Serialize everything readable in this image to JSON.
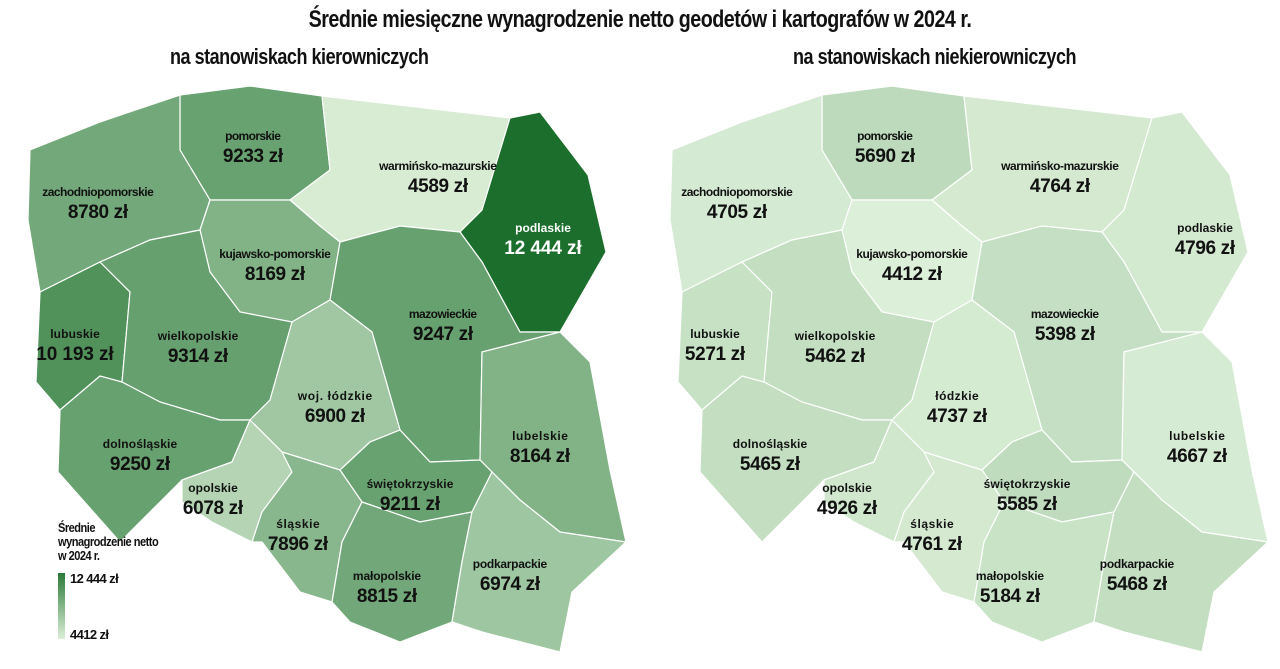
{
  "title": "Średnie miesięczne wynagrodzenie netto geodetów i kartografów w 2024 r.",
  "maps": {
    "left": {
      "subtitle": "na stanowiskach kierowniczych"
    },
    "right": {
      "subtitle": "na stanowiskach niekierowniczych"
    }
  },
  "legend": {
    "title": "Średnie wynagrodzenie netto w 2024 r.",
    "max_label": "12 444 zł",
    "min_label": "4412 zł",
    "max": 12444,
    "min": 4412,
    "color_low": "#dcefd8",
    "color_high": "#1b6e2b"
  },
  "regions": [
    {
      "id": "pomorskie",
      "left_label": "pomorskie",
      "left_value": 9233,
      "left_text": "9233 zł",
      "right_label": "pomorskie",
      "right_value": 5690,
      "right_text": "5690 zł"
    },
    {
      "id": "zachodniopomorskie",
      "left_label": "zachodniopomorskie",
      "left_value": 8780,
      "left_text": "8780 zł",
      "right_label": "zachodniopomorskie",
      "right_value": 4705,
      "right_text": "4705 zł"
    },
    {
      "id": "warminsko-mazurskie",
      "left_label": "warmińsko-mazurskie",
      "left_value": 4589,
      "left_text": "4589 zł",
      "right_label": "warmińsko-mazurskie",
      "right_value": 4764,
      "right_text": "4764 zł"
    },
    {
      "id": "podlaskie",
      "left_label": "podlaskie",
      "left_value": 12444,
      "left_text": "12 444 zł",
      "right_label": "podlaskie",
      "right_value": 4796,
      "right_text": "4796 zł"
    },
    {
      "id": "kujawsko-pomorskie",
      "left_label": "kujawsko-pomorskie",
      "left_value": 8169,
      "left_text": "8169 zł",
      "right_label": "kujawsko-pomorskie",
      "right_value": 4412,
      "right_text": "4412 zł"
    },
    {
      "id": "lubuskie",
      "left_label": "lubuskie",
      "left_value": 10193,
      "left_text": "10 193 zł",
      "right_label": "lubuskie",
      "right_value": 5271,
      "right_text": "5271 zł"
    },
    {
      "id": "wielkopolskie",
      "left_label": "wielkopolskie",
      "left_value": 9314,
      "left_text": "9314 zł",
      "right_label": "wielkopolskie",
      "right_value": 5462,
      "right_text": "5462 zł"
    },
    {
      "id": "mazowieckie",
      "left_label": "mazowieckie",
      "left_value": 9247,
      "left_text": "9247 zł",
      "right_label": "mazowieckie",
      "right_value": 5398,
      "right_text": "5398 zł"
    },
    {
      "id": "lodzkie",
      "left_label": "woj. łódzkie",
      "left_value": 6900,
      "left_text": "6900 zł",
      "right_label": "łódzkie",
      "right_value": 4737,
      "right_text": "4737 zł"
    },
    {
      "id": "dolnoslaskie",
      "left_label": "dolnośląskie",
      "left_value": 9250,
      "left_text": "9250 zł",
      "right_label": "dolnośląskie",
      "right_value": 5465,
      "right_text": "5465 zł"
    },
    {
      "id": "lubelskie",
      "left_label": "lubelskie",
      "left_value": 8164,
      "left_text": "8164 zł",
      "right_label": "lubelskie",
      "right_value": 4667,
      "right_text": "4667 zł"
    },
    {
      "id": "opolskie",
      "left_label": "opolskie",
      "left_value": 6078,
      "left_text": "6078 zł",
      "right_label": "opolskie",
      "right_value": 4926,
      "right_text": "4926 zł"
    },
    {
      "id": "swietokrzyskie",
      "left_label": "świętokrzyskie",
      "left_value": 9211,
      "left_text": "9211 zł",
      "right_label": "świętokrzyskie",
      "right_value": 5585,
      "right_text": "5585 zł"
    },
    {
      "id": "slaskie",
      "left_label": "śląskie",
      "left_value": 7896,
      "left_text": "7896 zł",
      "right_label": "śląskie",
      "right_value": 4761,
      "right_text": "4761 zł"
    },
    {
      "id": "malopolskie",
      "left_label": "małopolskie",
      "left_value": 8815,
      "left_text": "8815 zł",
      "right_label": "małopolskie",
      "right_value": 5184,
      "right_text": "5184 zł"
    },
    {
      "id": "podkarpackie",
      "left_label": "podkarpackie",
      "left_value": 6974,
      "left_text": "6974 zł",
      "right_label": "podkarpackie",
      "right_value": 5468,
      "right_text": "5468 zł"
    }
  ]
}
